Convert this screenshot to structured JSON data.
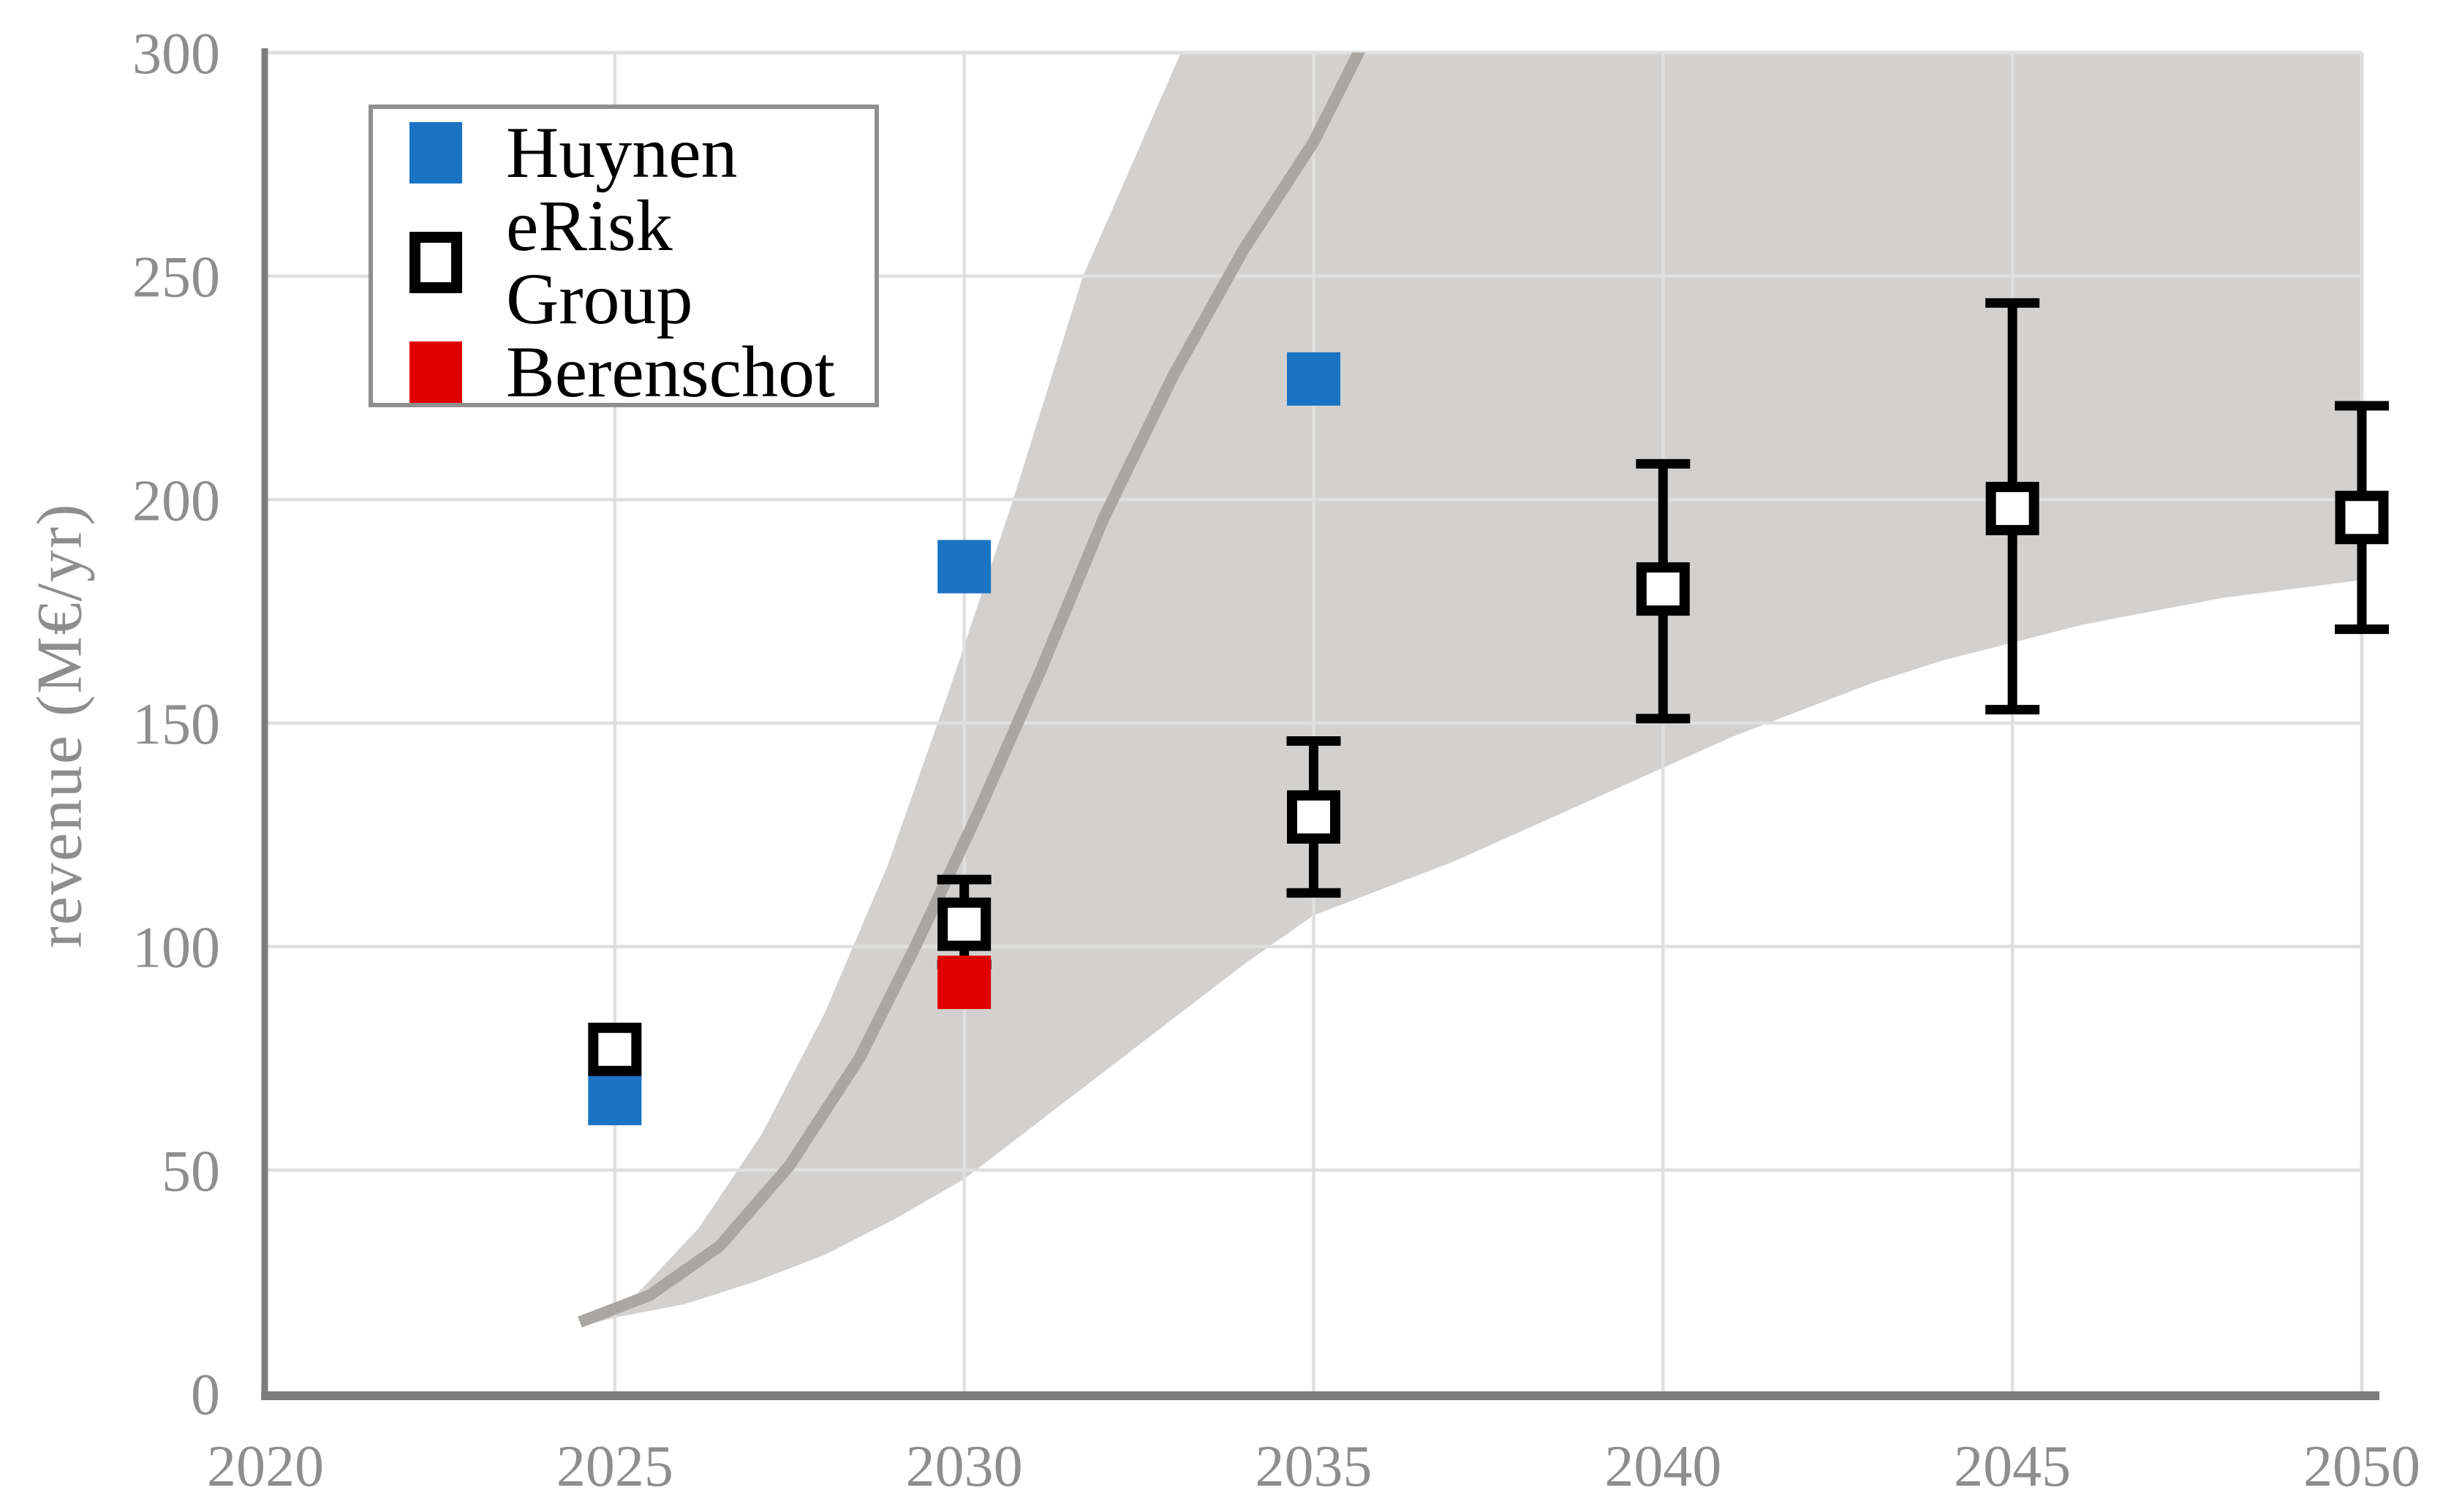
{
  "chart_data": {
    "type": "scatter",
    "title": "",
    "xlabel": "",
    "ylabel": "revenue (M€/yr)",
    "xlim": [
      2020,
      2050
    ],
    "ylim": [
      0,
      300
    ],
    "x_ticks": [
      "2020",
      "2025",
      "2030",
      "2035",
      "2040",
      "2045",
      "2050"
    ],
    "y_ticks": [
      "0",
      "50",
      "100",
      "150",
      "200",
      "250",
      "300"
    ],
    "grid": true,
    "legend_position": "upper-left",
    "series": [
      {
        "name": "Huynen",
        "marker": "filled-square",
        "color": "#1b73c3",
        "points": [
          {
            "x": 2025,
            "y": 66
          },
          {
            "x": 2030,
            "y": 185
          },
          {
            "x": 2035,
            "y": 227
          }
        ]
      },
      {
        "name": "eRisk Group",
        "marker": "open-square",
        "color": "#000000",
        "points": [
          {
            "x": 2025,
            "y": 77
          },
          {
            "x": 2030,
            "y": 105,
            "lo": 96,
            "hi": 115
          },
          {
            "x": 2035,
            "y": 129,
            "lo": 112,
            "hi": 146
          },
          {
            "x": 2040,
            "y": 180,
            "lo": 151,
            "hi": 208
          },
          {
            "x": 2045,
            "y": 198,
            "lo": 153,
            "hi": 244
          },
          {
            "x": 2050,
            "y": 196,
            "lo": 171,
            "hi": 221
          }
        ]
      },
      {
        "name": "Berenschot",
        "marker": "filled-square",
        "color": "#e00000",
        "points": [
          {
            "x": 2030,
            "y": 92
          }
        ]
      }
    ],
    "uncertainty_band": {
      "color": "#d3d1cf",
      "lower": [
        [
          2024.5,
          15
        ],
        [
          2025,
          17
        ],
        [
          2026,
          20
        ],
        [
          2027,
          25
        ],
        [
          2028,
          31
        ],
        [
          2029,
          39
        ],
        [
          2030,
          48
        ],
        [
          2031,
          60
        ],
        [
          2032,
          72
        ],
        [
          2033,
          84
        ],
        [
          2034,
          96
        ],
        [
          2035,
          107
        ],
        [
          2036,
          113
        ],
        [
          2037,
          119
        ],
        [
          2038,
          126
        ],
        [
          2039,
          133
        ],
        [
          2040,
          140
        ],
        [
          2041,
          147
        ],
        [
          2042,
          153
        ],
        [
          2043,
          159
        ],
        [
          2044,
          164
        ],
        [
          2045,
          168
        ],
        [
          2046,
          172
        ],
        [
          2047,
          175
        ],
        [
          2048,
          178
        ],
        [
          2049,
          180
        ],
        [
          2050,
          182
        ]
      ],
      "upper": [
        [
          2024.5,
          15
        ],
        [
          2025.3,
          22
        ],
        [
          2026.2,
          37
        ],
        [
          2027.1,
          58
        ],
        [
          2028,
          85
        ],
        [
          2028.9,
          118
        ],
        [
          2029.8,
          158
        ],
        [
          2030.7,
          200
        ],
        [
          2031.7,
          250
        ],
        [
          2032.4,
          275
        ],
        [
          2033.1,
          300
        ],
        [
          2033.6,
          330
        ],
        [
          2050,
          330
        ]
      ]
    },
    "trend_line": {
      "color": "#a9a6a3",
      "points": [
        [
          2024.5,
          16
        ],
        [
          2025.5,
          22
        ],
        [
          2026.5,
          33
        ],
        [
          2027.5,
          51
        ],
        [
          2028.5,
          75
        ],
        [
          2029.3,
          100
        ],
        [
          2030.2,
          130
        ],
        [
          2031.1,
          162
        ],
        [
          2032,
          196
        ],
        [
          2033,
          228
        ],
        [
          2034,
          256
        ],
        [
          2035,
          280
        ],
        [
          2035.9,
          308
        ]
      ]
    },
    "colors": {
      "grid": "#dfdfdf",
      "plot_border": "#dfdfdf",
      "axis": "#7d7d7d",
      "tick_label": "#8e8e8e",
      "band": "#d3d1cf",
      "trend": "#a9a6a3"
    }
  },
  "legend": {
    "items": [
      {
        "label": "Huynen",
        "swatch": "blue-filled-square"
      },
      {
        "label": "eRisk Group",
        "swatch": "black-open-square"
      },
      {
        "label": "Berenschot",
        "swatch": "red-filled-square"
      }
    ]
  }
}
